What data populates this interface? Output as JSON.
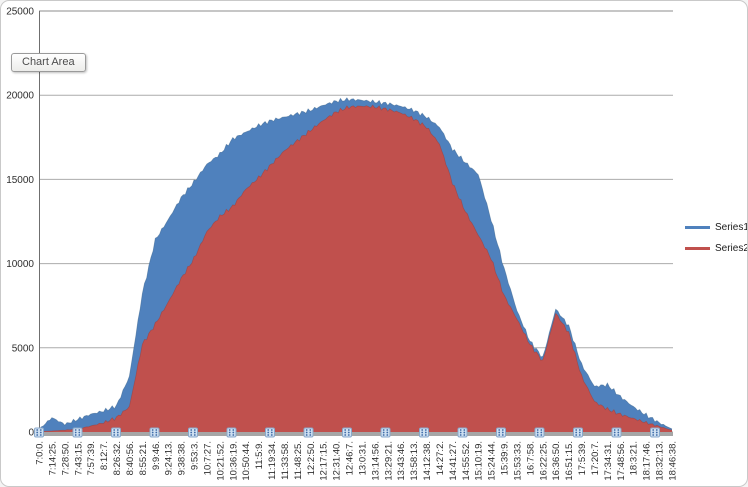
{
  "tooltip": {
    "label": "Chart Area"
  },
  "chart_data": {
    "type": "area",
    "title": "",
    "grid": true,
    "legend_position": "right",
    "x_axis": {
      "labels": [
        "7:0:0.",
        "7:14:25.",
        "7:28:50.",
        "7:43:15.",
        "7:57:39.",
        "8:12:7.",
        "8:26:32.",
        "8:40:56.",
        "8:55:21.",
        "9:9:46.",
        "9:24:13.",
        "9:38:38.",
        "9:53:3.",
        "10:7:27.",
        "10:21:52.",
        "10:36:19.",
        "10:50:44.",
        "11:5:9.",
        "11:19:34.",
        "11:33:58.",
        "11:48:25.",
        "12:2:50.",
        "12:17:15.",
        "12:31:40.",
        "12:46:7.",
        "13:0:31.",
        "13:14:56.",
        "13:29:21.",
        "13:43:46.",
        "13:58:13.",
        "14:12:38.",
        "14:27:2.",
        "14:41:27.",
        "14:55:52.",
        "15:10:19.",
        "15:24:44.",
        "15:39:9.",
        "15:53:33.",
        "16:7:58.",
        "16:22:25.",
        "16:36:50.",
        "16:51:15.",
        "17:5:39.",
        "17:20:7.",
        "17:34:31.",
        "17:48:56.",
        "18:3:21.",
        "18:17:46.",
        "18:32:13.",
        "18:46:38."
      ]
    },
    "y_axis": {
      "min": 0,
      "max": 25000,
      "tick_step": 5000,
      "labels": [
        "25000",
        "20000",
        "15000",
        "10000",
        "5000",
        "0"
      ],
      "ticks": [
        25000,
        20000,
        15000,
        10000,
        5000,
        0
      ]
    },
    "series": [
      {
        "name": "Series1",
        "color": "#4F81BD",
        "edge_color": "#3E688F",
        "values": [
          150,
          850,
          450,
          750,
          1050,
          1250,
          1550,
          3300,
          8200,
          11400,
          12600,
          13900,
          14850,
          15900,
          16500,
          17400,
          17800,
          18200,
          18500,
          18700,
          18900,
          19100,
          19400,
          19650,
          19750,
          19700,
          19600,
          19500,
          19350,
          19100,
          18700,
          18100,
          16800,
          16000,
          15300,
          12600,
          9700,
          7200,
          5400,
          4400,
          7300,
          6300,
          4000,
          2700,
          2800,
          2100,
          1500,
          1000,
          550,
          180
        ]
      },
      {
        "name": "Series2",
        "color": "#C0504D",
        "edge_color": "#9E3D3A",
        "values": [
          20,
          60,
          110,
          180,
          350,
          550,
          850,
          1500,
          5200,
          6400,
          7700,
          9100,
          10300,
          11900,
          12800,
          13400,
          14400,
          15100,
          15900,
          16700,
          17300,
          17900,
          18500,
          19000,
          19300,
          19350,
          19300,
          19150,
          18950,
          18600,
          18100,
          17100,
          14800,
          13100,
          11700,
          10300,
          8100,
          6700,
          5200,
          4200,
          7050,
          5900,
          3300,
          1800,
          1350,
          1050,
          800,
          550,
          330,
          100
        ]
      }
    ],
    "style": {
      "jitter": 130,
      "gridline_color": "#ABABAB",
      "top_gridline_color": "#8C8C8C",
      "axis_line_color": "#6F6F6F",
      "axis_band_color": "#A6A6A6",
      "tick_label_color": "#2e2e2e",
      "handle_fill": "#CFE0F1",
      "handle_border": "#89A9CC",
      "handle_dot": "#3E6BA8",
      "handle_count": 17
    }
  }
}
